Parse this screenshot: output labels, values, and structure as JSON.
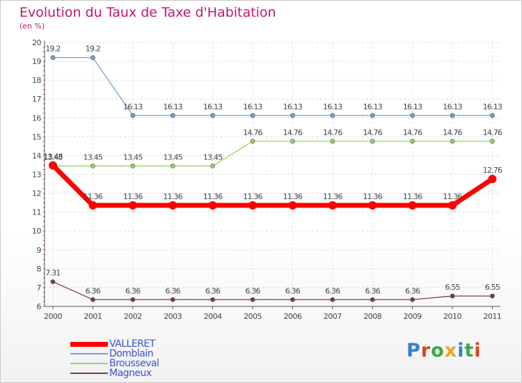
{
  "title": "Evolution du Taux de Taxe d'Habitation",
  "subtitle": "(en %)",
  "logo": {
    "text": "Proxiti",
    "colors": [
      "#2f7fd3",
      "#d9431d",
      "#39a845",
      "#f2a21f",
      "#2f7fd3",
      "#39a845",
      "#d9431d"
    ]
  },
  "chart_data": {
    "type": "line",
    "title": "Evolution du Taux de Taxe d'Habitation",
    "ylabel": "(en %)",
    "xlabel": "",
    "x": [
      "2000",
      "2001",
      "2002",
      "2003",
      "2004",
      "2005",
      "2006",
      "2007",
      "2008",
      "2009",
      "2010",
      "2011"
    ],
    "ylim": [
      6,
      20
    ],
    "yticks": [
      "6",
      "7",
      "8",
      "9",
      "10",
      "11",
      "12",
      "13",
      "14",
      "15",
      "16",
      "17",
      "18",
      "19",
      "20"
    ],
    "grid": true,
    "legend_position": "bottom-left",
    "series": [
      {
        "name": "VALLERET",
        "color": "#ff0000",
        "values": [
          13.48,
          11.36,
          11.36,
          11.36,
          11.36,
          11.36,
          11.36,
          11.36,
          11.36,
          11.36,
          11.36,
          12.76
        ],
        "labels": [
          "13.48",
          "11.36",
          "11.36",
          "11.36",
          "11.36",
          "11.36",
          "11.36",
          "11.36",
          "11.36",
          "11.36",
          "11.36",
          "12.76"
        ]
      },
      {
        "name": "Domblain",
        "color": "#6fa2d6",
        "values": [
          19.2,
          19.2,
          16.13,
          16.13,
          16.13,
          16.13,
          16.13,
          16.13,
          16.13,
          16.13,
          16.13,
          16.13
        ],
        "labels": [
          "19.2",
          "19.2",
          "16.13",
          "16.13",
          "16.13",
          "16.13",
          "16.13",
          "16.13",
          "16.13",
          "16.13",
          "16.13",
          "16.13"
        ]
      },
      {
        "name": "Brousseval",
        "color": "#99d45f",
        "values": [
          13.45,
          13.45,
          13.45,
          13.45,
          13.45,
          14.76,
          14.76,
          14.76,
          14.76,
          14.76,
          14.76,
          14.76
        ],
        "labels": [
          "13.45",
          "13.45",
          "13.45",
          "13.45",
          "13.45",
          "14.76",
          "14.76",
          "14.76",
          "14.76",
          "14.76",
          "14.76",
          "14.76"
        ]
      },
      {
        "name": "Magneux",
        "color": "#7b3a46",
        "values": [
          7.31,
          6.36,
          6.36,
          6.36,
          6.36,
          6.36,
          6.36,
          6.36,
          6.36,
          6.36,
          6.55,
          6.55
        ],
        "labels": [
          "7.31",
          "6.36",
          "6.36",
          "6.36",
          "6.36",
          "6.36",
          "6.36",
          "6.36",
          "6.36",
          "6.36",
          "6.55",
          "6.55"
        ]
      }
    ]
  }
}
